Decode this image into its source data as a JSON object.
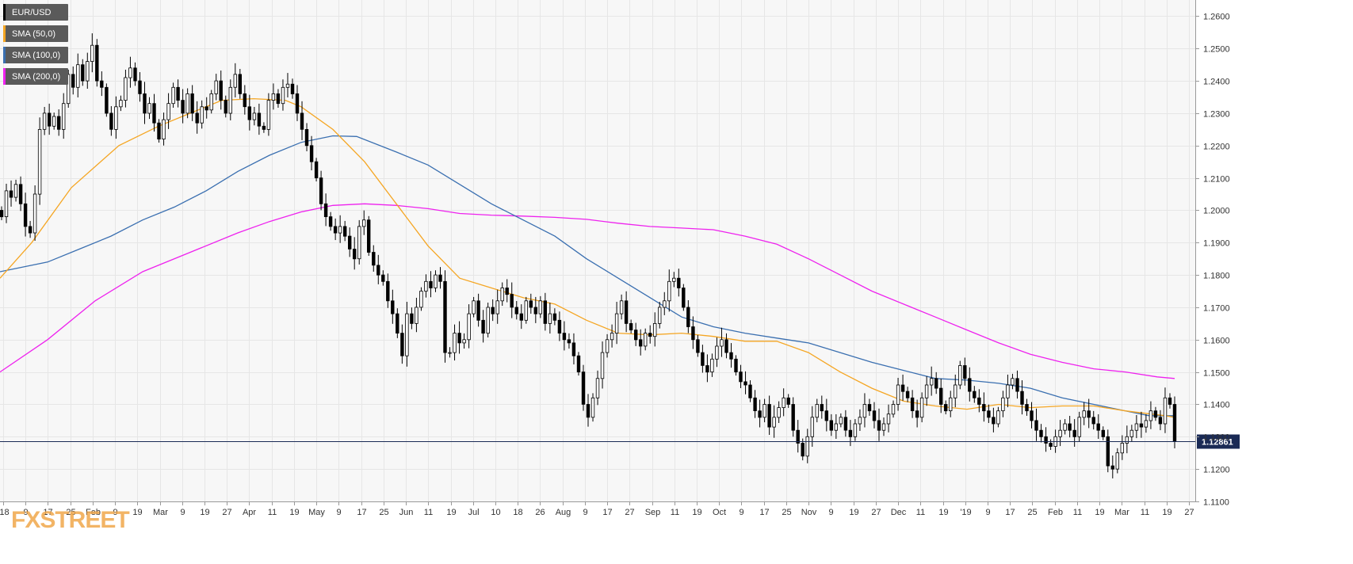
{
  "legend": [
    {
      "label": "EUR/USD",
      "color": "#000000"
    },
    {
      "label": "SMA (50,0)",
      "color": "#f5a623"
    },
    {
      "label": "SMA (100,0)",
      "color": "#3a6fb0"
    },
    {
      "label": "SMA (200,0)",
      "color": "#ee22ee"
    }
  ],
  "watermark": {
    "part1": "FX",
    "part2": "STREET"
  },
  "price_label": "1.12861",
  "colors": {
    "background": "#f7f7f7",
    "grid": "#e6e6e6",
    "axis": "#999999",
    "current_price_line": "#1a2a55",
    "price_box": "#1a2a55",
    "candle_up": "#ffffff",
    "candle_down": "#000000",
    "sma50": "#f5a623",
    "sma100": "#3a6fb0",
    "sma200": "#ee22ee"
  },
  "chart_data": {
    "type": "candlestick",
    "title": "EUR/USD",
    "xlabel": "",
    "ylabel": "",
    "ylim": [
      1.11,
      1.265
    ],
    "y_ticks": [
      "1.1100",
      "1.1200",
      "1.1300",
      "1.1400",
      "1.1500",
      "1.1600",
      "1.1700",
      "1.1800",
      "1.1900",
      "1.2000",
      "1.2100",
      "1.2200",
      "1.2300",
      "1.2400",
      "1.2500",
      "1.2600"
    ],
    "x_ticks": [
      "'18",
      "9",
      "17",
      "25",
      "Feb",
      "9",
      "19",
      "Mar",
      "9",
      "19",
      "27",
      "Apr",
      "11",
      "19",
      "May",
      "9",
      "17",
      "25",
      "Jun",
      "11",
      "19",
      "Jul",
      "10",
      "18",
      "26",
      "Aug",
      "9",
      "17",
      "27",
      "Sep",
      "11",
      "19",
      "Oct",
      "9",
      "17",
      "25",
      "Nov",
      "9",
      "19",
      "27",
      "Dec",
      "11",
      "19",
      "'19",
      "9",
      "17",
      "25",
      "Feb",
      "11",
      "19",
      "Mar",
      "11",
      "19",
      "27"
    ],
    "current_price": 1.12861,
    "closes": [
      1.198,
      1.206,
      1.204,
      1.208,
      1.202,
      1.195,
      1.193,
      1.205,
      1.225,
      1.23,
      1.226,
      1.229,
      1.225,
      1.233,
      1.242,
      1.238,
      1.245,
      1.24,
      1.246,
      1.251,
      1.24,
      1.238,
      1.23,
      1.225,
      1.232,
      1.234,
      1.241,
      1.244,
      1.24,
      1.236,
      1.23,
      1.233,
      1.227,
      1.222,
      1.228,
      1.233,
      1.238,
      1.234,
      1.23,
      1.236,
      1.23,
      1.227,
      1.232,
      1.231,
      1.236,
      1.24,
      1.234,
      1.23,
      1.238,
      1.242,
      1.236,
      1.232,
      1.228,
      1.23,
      1.226,
      1.225,
      1.234,
      1.236,
      1.233,
      1.238,
      1.239,
      1.236,
      1.23,
      1.225,
      1.22,
      1.215,
      1.21,
      1.202,
      1.198,
      1.195,
      1.193,
      1.195,
      1.192,
      1.188,
      1.185,
      1.195,
      1.197,
      1.187,
      1.183,
      1.18,
      1.178,
      1.172,
      1.168,
      1.162,
      1.155,
      1.168,
      1.165,
      1.17,
      1.175,
      1.178,
      1.176,
      1.18,
      1.178,
      1.156,
      1.156,
      1.162,
      1.159,
      1.16,
      1.168,
      1.172,
      1.166,
      1.162,
      1.17,
      1.168,
      1.172,
      1.176,
      1.174,
      1.17,
      1.168,
      1.166,
      1.172,
      1.17,
      1.168,
      1.172,
      1.165,
      1.168,
      1.166,
      1.162,
      1.16,
      1.159,
      1.155,
      1.15,
      1.14,
      1.136,
      1.142,
      1.148,
      1.156,
      1.16,
      1.162,
      1.168,
      1.172,
      1.165,
      1.163,
      1.16,
      1.158,
      1.162,
      1.161,
      1.165,
      1.17,
      1.172,
      1.178,
      1.179,
      1.176,
      1.17,
      1.164,
      1.16,
      1.156,
      1.152,
      1.15,
      1.154,
      1.158,
      1.16,
      1.156,
      1.154,
      1.15,
      1.147,
      1.146,
      1.142,
      1.138,
      1.136,
      1.14,
      1.133,
      1.136,
      1.139,
      1.142,
      1.14,
      1.132,
      1.128,
      1.124,
      1.13,
      1.136,
      1.14,
      1.138,
      1.135,
      1.132,
      1.134,
      1.136,
      1.132,
      1.13,
      1.134,
      1.136,
      1.14,
      1.138,
      1.135,
      1.132,
      1.134,
      1.137,
      1.14,
      1.146,
      1.144,
      1.142,
      1.138,
      1.136,
      1.142,
      1.146,
      1.148,
      1.145,
      1.14,
      1.138,
      1.142,
      1.146,
      1.152,
      1.148,
      1.144,
      1.142,
      1.14,
      1.138,
      1.136,
      1.134,
      1.138,
      1.142,
      1.146,
      1.148,
      1.144,
      1.14,
      1.138,
      1.135,
      1.132,
      1.13,
      1.128,
      1.127,
      1.13,
      1.132,
      1.134,
      1.132,
      1.13,
      1.136,
      1.138,
      1.136,
      1.134,
      1.132,
      1.13,
      1.121,
      1.12,
      1.125,
      1.128,
      1.13,
      1.132,
      1.134,
      1.133,
      1.135,
      1.138,
      1.136,
      1.134,
      1.142,
      1.14,
      1.1286
    ],
    "sma50": [
      [
        0,
        1.179
      ],
      [
        40,
        1.19
      ],
      [
        90,
        1.207
      ],
      [
        150,
        1.22
      ],
      [
        200,
        1.226
      ],
      [
        240,
        1.23
      ],
      [
        280,
        1.234
      ],
      [
        320,
        1.2345
      ],
      [
        360,
        1.234
      ],
      [
        380,
        1.232
      ],
      [
        420,
        1.225
      ],
      [
        460,
        1.215
      ],
      [
        500,
        1.202
      ],
      [
        540,
        1.189
      ],
      [
        580,
        1.179
      ],
      [
        620,
        1.176
      ],
      [
        660,
        1.173
      ],
      [
        700,
        1.171
      ],
      [
        740,
        1.166
      ],
      [
        780,
        1.162
      ],
      [
        820,
        1.1615
      ],
      [
        860,
        1.162
      ],
      [
        900,
        1.161
      ],
      [
        940,
        1.1595
      ],
      [
        980,
        1.1595
      ],
      [
        1020,
        1.156
      ],
      [
        1060,
        1.15
      ],
      [
        1100,
        1.145
      ],
      [
        1140,
        1.141
      ],
      [
        1180,
        1.1395
      ],
      [
        1220,
        1.1385
      ],
      [
        1260,
        1.14
      ],
      [
        1300,
        1.139
      ],
      [
        1340,
        1.1395
      ],
      [
        1380,
        1.1395
      ],
      [
        1420,
        1.138
      ],
      [
        1470,
        1.1365
      ],
      [
        1482,
        1.136
      ]
    ],
    "sma100": [
      [
        0,
        1.181
      ],
      [
        60,
        1.184
      ],
      [
        100,
        1.188
      ],
      [
        140,
        1.192
      ],
      [
        180,
        1.197
      ],
      [
        220,
        1.201
      ],
      [
        260,
        1.206
      ],
      [
        300,
        1.212
      ],
      [
        340,
        1.217
      ],
      [
        380,
        1.221
      ],
      [
        420,
        1.223
      ],
      [
        450,
        1.2228
      ],
      [
        500,
        1.218
      ],
      [
        540,
        1.214
      ],
      [
        580,
        1.208
      ],
      [
        620,
        1.202
      ],
      [
        660,
        1.197
      ],
      [
        700,
        1.192
      ],
      [
        740,
        1.185
      ],
      [
        780,
        1.179
      ],
      [
        820,
        1.173
      ],
      [
        860,
        1.167
      ],
      [
        900,
        1.164
      ],
      [
        940,
        1.162
      ],
      [
        980,
        1.1605
      ],
      [
        1020,
        1.159
      ],
      [
        1060,
        1.156
      ],
      [
        1100,
        1.153
      ],
      [
        1140,
        1.1505
      ],
      [
        1180,
        1.148
      ],
      [
        1220,
        1.1475
      ],
      [
        1260,
        1.1465
      ],
      [
        1300,
        1.145
      ],
      [
        1340,
        1.142
      ],
      [
        1380,
        1.14
      ],
      [
        1420,
        1.138
      ],
      [
        1450,
        1.1365
      ],
      [
        1482,
        1.1365
      ]
    ],
    "sma200": [
      [
        0,
        1.15
      ],
      [
        60,
        1.16
      ],
      [
        120,
        1.172
      ],
      [
        180,
        1.181
      ],
      [
        240,
        1.187
      ],
      [
        300,
        1.193
      ],
      [
        340,
        1.1965
      ],
      [
        380,
        1.1995
      ],
      [
        420,
        1.2015
      ],
      [
        460,
        1.202
      ],
      [
        500,
        1.2015
      ],
      [
        540,
        1.2005
      ],
      [
        580,
        1.199
      ],
      [
        620,
        1.1985
      ],
      [
        660,
        1.1982
      ],
      [
        700,
        1.1978
      ],
      [
        740,
        1.1972
      ],
      [
        780,
        1.196
      ],
      [
        820,
        1.195
      ],
      [
        860,
        1.1945
      ],
      [
        900,
        1.194
      ],
      [
        940,
        1.192
      ],
      [
        980,
        1.1895
      ],
      [
        1020,
        1.185
      ],
      [
        1060,
        1.18
      ],
      [
        1100,
        1.175
      ],
      [
        1140,
        1.171
      ],
      [
        1180,
        1.167
      ],
      [
        1220,
        1.163
      ],
      [
        1260,
        1.159
      ],
      [
        1300,
        1.1555
      ],
      [
        1340,
        1.153
      ],
      [
        1380,
        1.151
      ],
      [
        1420,
        1.15
      ],
      [
        1460,
        1.1485
      ],
      [
        1482,
        1.148
      ]
    ]
  }
}
